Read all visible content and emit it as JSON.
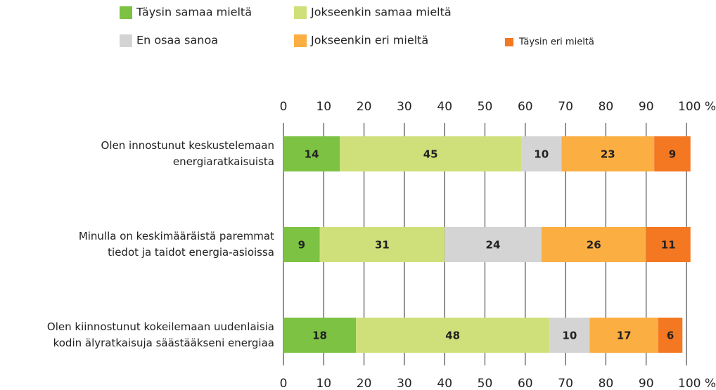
{
  "chart_data": {
    "type": "stacked_bar_horizontal",
    "categories": [
      "Olen innostunut keskustelemaan\nenergiaratkaisuista",
      "Minulla on keskimääräistä paremmat\ntiedot ja taidot energia-asioissa",
      "Olen kiinnostunut kokeilemaan uudenlaisia\nkodin älyratkaisuja säästääkseni energiaa"
    ],
    "series": [
      {
        "name": "Täysin samaa mieltä",
        "color": "#7dc242",
        "values": [
          14,
          9,
          18
        ]
      },
      {
        "name": "Jokseenkin samaa mieltä",
        "color": "#cfe07a",
        "values": [
          45,
          31,
          48
        ]
      },
      {
        "name": "En osaa sanoa",
        "color": "#d4d4d4",
        "values": [
          10,
          24,
          10
        ]
      },
      {
        "name": "Jokseenkin eri mieltä",
        "color": "#fbae42",
        "values": [
          23,
          26,
          17
        ]
      },
      {
        "name": "Täysin eri mieltä",
        "color": "#f47721",
        "values": [
          9,
          11,
          6
        ]
      }
    ],
    "xlim": [
      0,
      100
    ],
    "xticks": [
      0,
      10,
      20,
      30,
      40,
      50,
      60,
      70,
      80,
      90,
      {
        "value": 100,
        "label": "100 %"
      }
    ],
    "grid": true
  }
}
